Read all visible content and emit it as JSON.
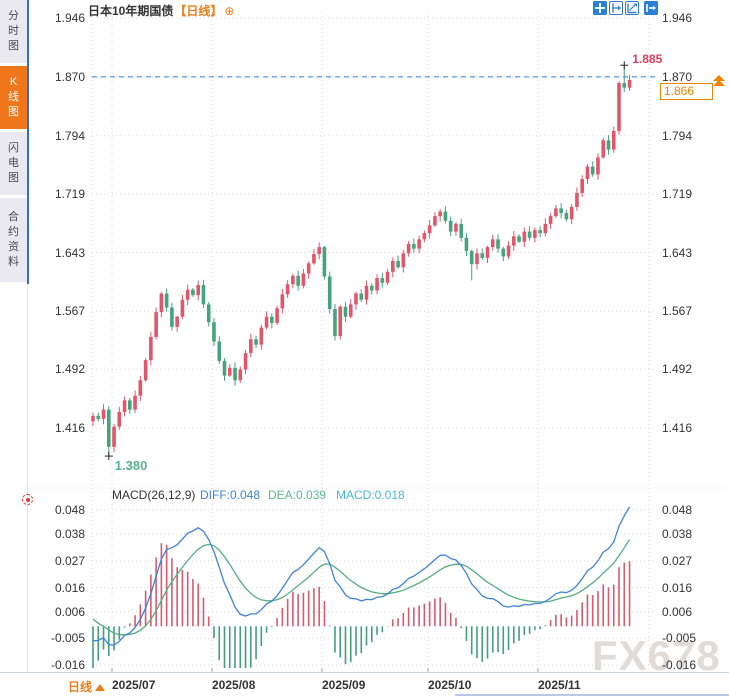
{
  "header": {
    "title": "日本10年期国债",
    "interval_badge": "【日线】",
    "add_icon": "⊕"
  },
  "toolbar": {
    "icons": [
      "pan-crosshair-icon",
      "compress-x-icon",
      "expand-x-icon",
      "exit-chart-icon"
    ]
  },
  "sidebar": {
    "tabs": [
      {
        "label": "分时图",
        "name": "sidebar-tab-time-chart",
        "active": false
      },
      {
        "label": "K线图",
        "name": "sidebar-tab-kline-chart",
        "active": true
      },
      {
        "label": "闪电图",
        "name": "sidebar-tab-flash-chart",
        "active": false
      },
      {
        "label": "合约资料",
        "name": "sidebar-tab-contract-info",
        "active": false
      }
    ]
  },
  "main_chart": {
    "high_label": "1.885",
    "low_label": "1.380",
    "current_price_label": "1.866"
  },
  "macd_panel": {
    "title": "MACD(26,12,9)",
    "diff_label": "DIFF:0.048",
    "dea_label": "DEA:0.039",
    "macd_label": "MACD:0.018"
  },
  "x_axis": {
    "interval_label": "日线",
    "dates": [
      "2025/07",
      "2025/08",
      "2025/09",
      "2025/10",
      "2025/11"
    ]
  },
  "watermark": "FX678",
  "colors": {
    "up": "#e0566b",
    "down": "#46a37b",
    "hist_up": "#d85a6d",
    "hist_down": "#43a07a",
    "diff_line": "#3f83d8",
    "dea_line": "#55ad7e",
    "dashed_line": "#2f7ded",
    "accent_orange": "#f07c1a",
    "high_label": "#e23b5f",
    "low_label": "#56b38b",
    "macd_cyan": "#49b7d9",
    "toolbar_blue": "#2a7fd4",
    "grid": "#dcdce2"
  },
  "chart_data": {
    "type": "candlestick_with_macd",
    "instrument": "日本10年期国债",
    "interval": "日线",
    "session_high": 1.885,
    "session_low": 1.38,
    "current_price": 1.866,
    "dashed_line_price": 1.87,
    "price_axis": [
      1.946,
      1.87,
      1.794,
      1.719,
      1.643,
      1.567,
      1.492,
      1.416
    ],
    "open_first": 1.425,
    "closes": [
      1.432,
      1.428,
      1.44,
      1.392,
      1.418,
      1.437,
      1.452,
      1.44,
      1.458,
      1.478,
      1.504,
      1.534,
      1.566,
      1.59,
      1.572,
      1.547,
      1.56,
      1.582,
      1.595,
      1.588,
      1.601,
      1.576,
      1.553,
      1.528,
      1.503,
      1.484,
      1.494,
      1.478,
      1.492,
      1.513,
      1.531,
      1.524,
      1.546,
      1.56,
      1.552,
      1.571,
      1.589,
      1.602,
      1.613,
      1.6,
      1.616,
      1.629,
      1.641,
      1.65,
      1.612,
      1.57,
      1.535,
      1.573,
      1.56,
      1.576,
      1.59,
      1.582,
      1.6,
      1.594,
      1.61,
      1.604,
      1.618,
      1.632,
      1.624,
      1.642,
      1.654,
      1.648,
      1.66,
      1.668,
      1.678,
      1.69,
      1.696,
      1.684,
      1.67,
      1.68,
      1.662,
      1.645,
      1.628,
      1.642,
      1.636,
      1.65,
      1.66,
      1.648,
      1.638,
      1.652,
      1.664,
      1.657,
      1.67,
      1.662,
      1.672,
      1.668,
      1.68,
      1.69,
      1.7,
      1.694,
      1.686,
      1.702,
      1.72,
      1.738,
      1.754,
      1.744,
      1.766,
      1.788,
      1.776,
      1.8,
      1.862,
      1.856,
      1.866
    ],
    "low_overrides": {
      "3": 1.38,
      "72": 1.607,
      "100": 1.795
    },
    "high_overrides": {
      "101": 1.885
    },
    "low_marker_index": 3,
    "high_marker_index": 101,
    "month_ticks": [
      {
        "index": 4,
        "label": "2025/07"
      },
      {
        "index": 23,
        "label": "2025/08"
      },
      {
        "index": 44,
        "label": "2025/09"
      },
      {
        "index": 64,
        "label": "2025/10"
      },
      {
        "index": 85,
        "label": "2025/11"
      }
    ],
    "macd": {
      "params": [
        26,
        12,
        9
      ],
      "diff": 0.048,
      "dea": 0.039,
      "hist": 0.018,
      "axis": [
        0.048,
        0.038,
        0.027,
        0.016,
        0.006,
        -0.005,
        -0.016
      ],
      "hist_multiplier": 2,
      "seed": {
        "ema26_offset": 0.006,
        "dea0": 0.003
      }
    }
  }
}
